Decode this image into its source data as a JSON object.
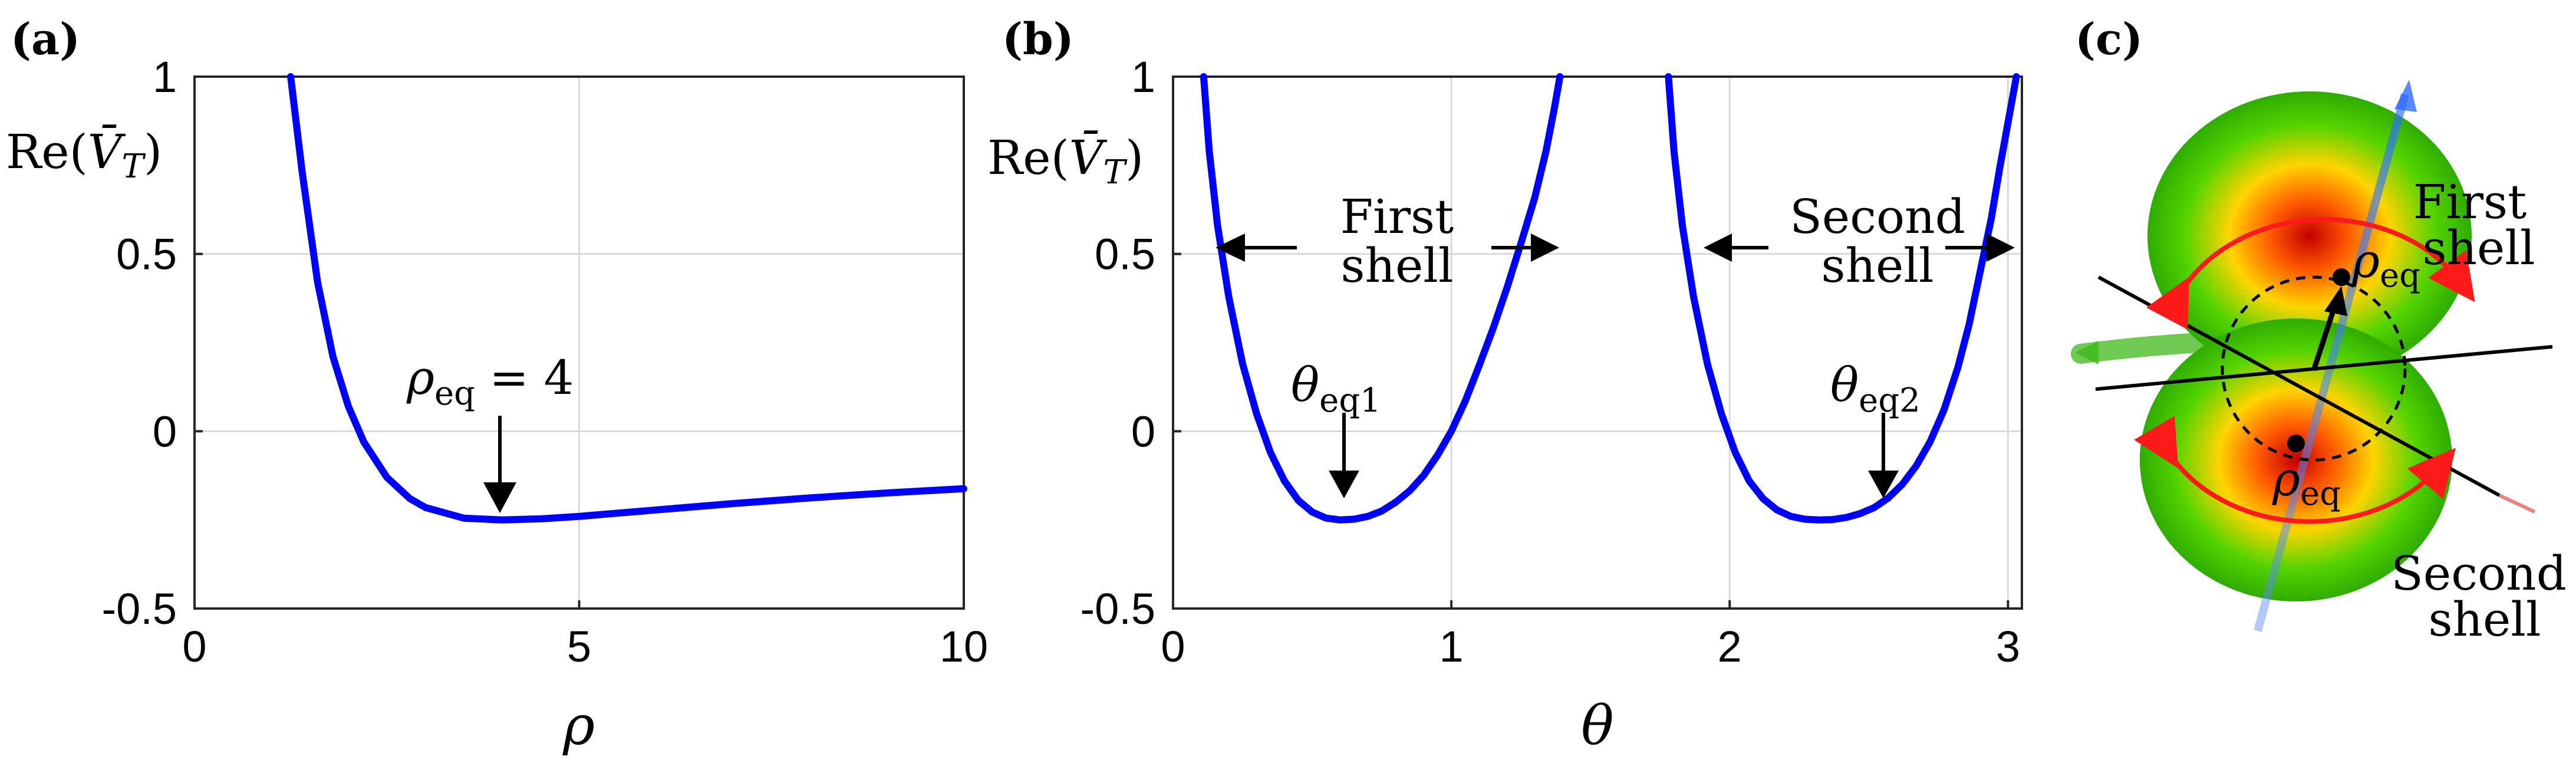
{
  "chart_data": [
    {
      "panel": "(a)",
      "type": "line",
      "ylabel": "Re(V̄T)",
      "xlabel": "ρ",
      "xlim": [
        0,
        10
      ],
      "ylim": [
        -0.5,
        1
      ],
      "xticks": [
        "0",
        "5",
        "10"
      ],
      "xtick_values": [
        0,
        5,
        10
      ],
      "yticks": [
        "-0.5",
        "0",
        "0.5",
        "1"
      ],
      "ytick_values": [
        -0.5,
        0,
        0.5,
        1
      ],
      "grid": true,
      "series": [
        {
          "name": "Re(V̄T)",
          "color": "#0000ff",
          "x": [
            1.25,
            1.4,
            1.6,
            1.8,
            2.0,
            2.2,
            2.5,
            2.8,
            3.0,
            3.5,
            4.0,
            4.5,
            5.0,
            6.0,
            7.0,
            8.0,
            9.0,
            10.0
          ],
          "y": [
            1.0,
            0.73,
            0.42,
            0.21,
            0.07,
            -0.03,
            -0.13,
            -0.19,
            -0.215,
            -0.245,
            -0.25,
            -0.247,
            -0.24,
            -0.222,
            -0.204,
            -0.188,
            -0.174,
            -0.162
          ]
        }
      ],
      "annotation": {
        "label": "ρ",
        "sub": "eq",
        "value_text": "= 4",
        "x": 4,
        "y": -0.25
      }
    },
    {
      "panel": "(b)",
      "type": "line",
      "ylabel": "Re(V̄T)",
      "xlabel": "θ",
      "xlim": [
        0,
        3.05
      ],
      "ylim": [
        -0.5,
        1
      ],
      "xticks": [
        "0",
        "1",
        "2",
        "3"
      ],
      "xtick_values": [
        0,
        1,
        2,
        3
      ],
      "yticks": [
        "-0.5",
        "0",
        "0.5",
        "1"
      ],
      "ytick_values": [
        -0.5,
        0,
        0.5,
        1
      ],
      "grid": true,
      "series": [
        {
          "name": "First shell",
          "color": "#0000ff",
          "x": [
            0.11,
            0.13,
            0.16,
            0.2,
            0.25,
            0.3,
            0.35,
            0.4,
            0.45,
            0.5,
            0.55,
            0.6,
            0.65,
            0.7,
            0.75,
            0.8,
            0.85,
            0.9,
            0.95,
            1.0,
            1.05,
            1.1,
            1.15,
            1.2,
            1.25,
            1.3,
            1.34,
            1.37,
            1.39
          ],
          "y": [
            1.0,
            0.79,
            0.58,
            0.38,
            0.19,
            0.05,
            -0.06,
            -0.14,
            -0.195,
            -0.228,
            -0.245,
            -0.25,
            -0.248,
            -0.24,
            -0.225,
            -0.2,
            -0.168,
            -0.125,
            -0.068,
            0.0,
            0.085,
            0.185,
            0.29,
            0.405,
            0.53,
            0.66,
            0.79,
            0.91,
            1.0
          ]
        },
        {
          "name": "Second shell",
          "color": "#0000ff",
          "x": [
            1.78,
            1.8,
            1.83,
            1.87,
            1.92,
            1.97,
            2.02,
            2.07,
            2.12,
            2.17,
            2.22,
            2.27,
            2.32,
            2.37,
            2.42,
            2.47,
            2.52,
            2.57,
            2.62,
            2.67,
            2.72,
            2.77,
            2.82,
            2.86,
            2.9,
            2.94,
            2.97,
            3.0,
            3.03
          ],
          "y": [
            1.0,
            0.79,
            0.58,
            0.38,
            0.19,
            0.05,
            -0.06,
            -0.14,
            -0.19,
            -0.222,
            -0.24,
            -0.248,
            -0.25,
            -0.249,
            -0.243,
            -0.232,
            -0.215,
            -0.188,
            -0.15,
            -0.098,
            -0.03,
            0.06,
            0.18,
            0.3,
            0.45,
            0.6,
            0.74,
            0.87,
            1.0
          ]
        }
      ],
      "annotations": [
        {
          "label": "θ",
          "sub": "eq1",
          "x": 0.6,
          "y": -0.25
        },
        {
          "label": "θ",
          "sub": "eq2",
          "x": 2.54,
          "y": -0.25
        }
      ],
      "shell_labels": [
        {
          "line1": "First",
          "line2": "shell"
        },
        {
          "line1": "Second",
          "line2": "shell"
        }
      ]
    }
  ],
  "panel_c": {
    "label": "(c)",
    "first_shell": [
      "First",
      "shell"
    ],
    "second_shell": [
      "Second",
      "shell"
    ],
    "rho_eq": "ρ",
    "rho_eq_sub": "eq"
  }
}
